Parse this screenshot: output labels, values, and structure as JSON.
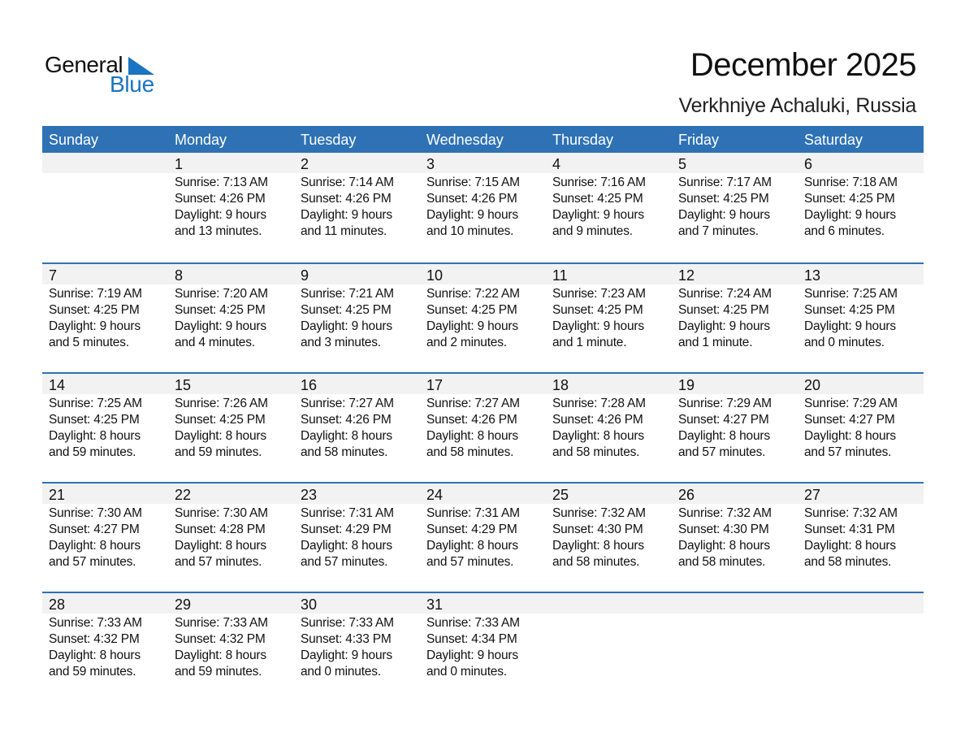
{
  "logo": {
    "word1": "General",
    "word2": "Blue",
    "accent": "#1a74c1"
  },
  "header": {
    "title": "December 2025",
    "location": "Verkhniye Achaluki, Russia"
  },
  "colors": {
    "header_bg": "#2e72b5",
    "date_band": "#f2f2f2"
  },
  "weekdays": [
    "Sunday",
    "Monday",
    "Tuesday",
    "Wednesday",
    "Thursday",
    "Friday",
    "Saturday"
  ],
  "weeks": [
    [
      null,
      {
        "date": "1",
        "sunrise": "Sunrise: 7:13 AM",
        "sunset": "Sunset: 4:26 PM",
        "daylight": "Daylight: 9 hours",
        "daylight_rest": "and 13 minutes."
      },
      {
        "date": "2",
        "sunrise": "Sunrise: 7:14 AM",
        "sunset": "Sunset: 4:26 PM",
        "daylight": "Daylight: 9 hours",
        "daylight_rest": "and 11 minutes."
      },
      {
        "date": "3",
        "sunrise": "Sunrise: 7:15 AM",
        "sunset": "Sunset: 4:26 PM",
        "daylight": "Daylight: 9 hours",
        "daylight_rest": "and 10 minutes."
      },
      {
        "date": "4",
        "sunrise": "Sunrise: 7:16 AM",
        "sunset": "Sunset: 4:25 PM",
        "daylight": "Daylight: 9 hours",
        "daylight_rest": "and 9 minutes."
      },
      {
        "date": "5",
        "sunrise": "Sunrise: 7:17 AM",
        "sunset": "Sunset: 4:25 PM",
        "daylight": "Daylight: 9 hours",
        "daylight_rest": "and 7 minutes."
      },
      {
        "date": "6",
        "sunrise": "Sunrise: 7:18 AM",
        "sunset": "Sunset: 4:25 PM",
        "daylight": "Daylight: 9 hours",
        "daylight_rest": "and 6 minutes."
      }
    ],
    [
      {
        "date": "7",
        "sunrise": "Sunrise: 7:19 AM",
        "sunset": "Sunset: 4:25 PM",
        "daylight": "Daylight: 9 hours",
        "daylight_rest": "and 5 minutes."
      },
      {
        "date": "8",
        "sunrise": "Sunrise: 7:20 AM",
        "sunset": "Sunset: 4:25 PM",
        "daylight": "Daylight: 9 hours",
        "daylight_rest": "and 4 minutes."
      },
      {
        "date": "9",
        "sunrise": "Sunrise: 7:21 AM",
        "sunset": "Sunset: 4:25 PM",
        "daylight": "Daylight: 9 hours",
        "daylight_rest": "and 3 minutes."
      },
      {
        "date": "10",
        "sunrise": "Sunrise: 7:22 AM",
        "sunset": "Sunset: 4:25 PM",
        "daylight": "Daylight: 9 hours",
        "daylight_rest": "and 2 minutes."
      },
      {
        "date": "11",
        "sunrise": "Sunrise: 7:23 AM",
        "sunset": "Sunset: 4:25 PM",
        "daylight": "Daylight: 9 hours",
        "daylight_rest": "and 1 minute."
      },
      {
        "date": "12",
        "sunrise": "Sunrise: 7:24 AM",
        "sunset": "Sunset: 4:25 PM",
        "daylight": "Daylight: 9 hours",
        "daylight_rest": "and 1 minute."
      },
      {
        "date": "13",
        "sunrise": "Sunrise: 7:25 AM",
        "sunset": "Sunset: 4:25 PM",
        "daylight": "Daylight: 9 hours",
        "daylight_rest": "and 0 minutes."
      }
    ],
    [
      {
        "date": "14",
        "sunrise": "Sunrise: 7:25 AM",
        "sunset": "Sunset: 4:25 PM",
        "daylight": "Daylight: 8 hours",
        "daylight_rest": "and 59 minutes."
      },
      {
        "date": "15",
        "sunrise": "Sunrise: 7:26 AM",
        "sunset": "Sunset: 4:25 PM",
        "daylight": "Daylight: 8 hours",
        "daylight_rest": "and 59 minutes."
      },
      {
        "date": "16",
        "sunrise": "Sunrise: 7:27 AM",
        "sunset": "Sunset: 4:26 PM",
        "daylight": "Daylight: 8 hours",
        "daylight_rest": "and 58 minutes."
      },
      {
        "date": "17",
        "sunrise": "Sunrise: 7:27 AM",
        "sunset": "Sunset: 4:26 PM",
        "daylight": "Daylight: 8 hours",
        "daylight_rest": "and 58 minutes."
      },
      {
        "date": "18",
        "sunrise": "Sunrise: 7:28 AM",
        "sunset": "Sunset: 4:26 PM",
        "daylight": "Daylight: 8 hours",
        "daylight_rest": "and 58 minutes."
      },
      {
        "date": "19",
        "sunrise": "Sunrise: 7:29 AM",
        "sunset": "Sunset: 4:27 PM",
        "daylight": "Daylight: 8 hours",
        "daylight_rest": "and 57 minutes."
      },
      {
        "date": "20",
        "sunrise": "Sunrise: 7:29 AM",
        "sunset": "Sunset: 4:27 PM",
        "daylight": "Daylight: 8 hours",
        "daylight_rest": "and 57 minutes."
      }
    ],
    [
      {
        "date": "21",
        "sunrise": "Sunrise: 7:30 AM",
        "sunset": "Sunset: 4:27 PM",
        "daylight": "Daylight: 8 hours",
        "daylight_rest": "and 57 minutes."
      },
      {
        "date": "22",
        "sunrise": "Sunrise: 7:30 AM",
        "sunset": "Sunset: 4:28 PM",
        "daylight": "Daylight: 8 hours",
        "daylight_rest": "and 57 minutes."
      },
      {
        "date": "23",
        "sunrise": "Sunrise: 7:31 AM",
        "sunset": "Sunset: 4:29 PM",
        "daylight": "Daylight: 8 hours",
        "daylight_rest": "and 57 minutes."
      },
      {
        "date": "24",
        "sunrise": "Sunrise: 7:31 AM",
        "sunset": "Sunset: 4:29 PM",
        "daylight": "Daylight: 8 hours",
        "daylight_rest": "and 57 minutes."
      },
      {
        "date": "25",
        "sunrise": "Sunrise: 7:32 AM",
        "sunset": "Sunset: 4:30 PM",
        "daylight": "Daylight: 8 hours",
        "daylight_rest": "and 58 minutes."
      },
      {
        "date": "26",
        "sunrise": "Sunrise: 7:32 AM",
        "sunset": "Sunset: 4:30 PM",
        "daylight": "Daylight: 8 hours",
        "daylight_rest": "and 58 minutes."
      },
      {
        "date": "27",
        "sunrise": "Sunrise: 7:32 AM",
        "sunset": "Sunset: 4:31 PM",
        "daylight": "Daylight: 8 hours",
        "daylight_rest": "and 58 minutes."
      }
    ],
    [
      {
        "date": "28",
        "sunrise": "Sunrise: 7:33 AM",
        "sunset": "Sunset: 4:32 PM",
        "daylight": "Daylight: 8 hours",
        "daylight_rest": "and 59 minutes."
      },
      {
        "date": "29",
        "sunrise": "Sunrise: 7:33 AM",
        "sunset": "Sunset: 4:32 PM",
        "daylight": "Daylight: 8 hours",
        "daylight_rest": "and 59 minutes."
      },
      {
        "date": "30",
        "sunrise": "Sunrise: 7:33 AM",
        "sunset": "Sunset: 4:33 PM",
        "daylight": "Daylight: 9 hours",
        "daylight_rest": "and 0 minutes."
      },
      {
        "date": "31",
        "sunrise": "Sunrise: 7:33 AM",
        "sunset": "Sunset: 4:34 PM",
        "daylight": "Daylight: 9 hours",
        "daylight_rest": "and 0 minutes."
      },
      null,
      null,
      null
    ]
  ]
}
